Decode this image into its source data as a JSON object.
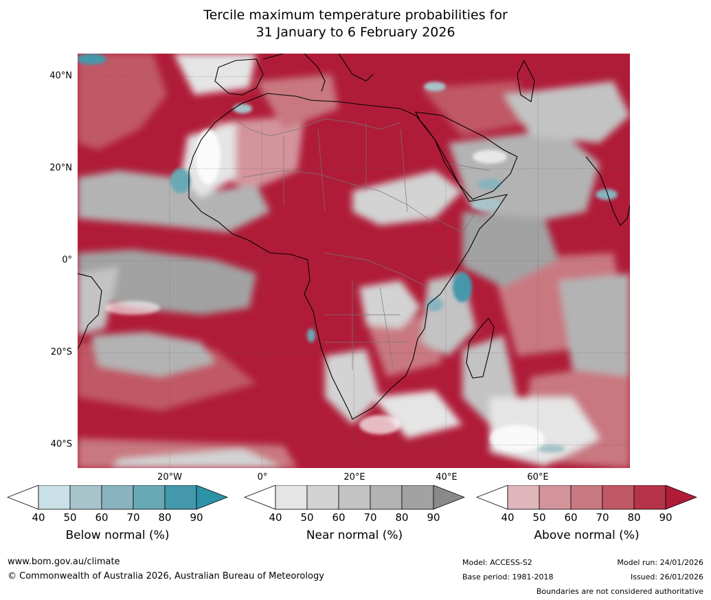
{
  "title": {
    "line1": "Tercile maximum temperature probabilities for",
    "line2": "31 January to 6 February 2026"
  },
  "map": {
    "lat_labels": [
      "40°N",
      "20°N",
      "0°",
      "20°S",
      "40°S"
    ],
    "lon_labels": [
      "20°W",
      "0°",
      "20°E",
      "40°E",
      "60°E"
    ],
    "extent": {
      "lon_min": -37,
      "lon_max": 83,
      "lat_min": -45,
      "lat_max": 45
    },
    "region": "Africa"
  },
  "colorbars": {
    "below": {
      "title": "Below normal (%)",
      "ticks": [
        "40",
        "50",
        "60",
        "70",
        "80",
        "90"
      ],
      "colors": [
        "#c9e1e6",
        "#a7c4cb",
        "#88b3bf",
        "#69a9b5",
        "#4498ab",
        "#2c93a8"
      ]
    },
    "near": {
      "title": "Near normal (%)",
      "ticks": [
        "40",
        "50",
        "60",
        "70",
        "80",
        "90"
      ],
      "colors": [
        "#e5e5e5",
        "#d3d3d3",
        "#c3c3c3",
        "#b3b3b3",
        "#a2a2a2",
        "#8a8a8a"
      ]
    },
    "above": {
      "title": "Above normal (%)",
      "ticks": [
        "40",
        "50",
        "60",
        "70",
        "80",
        "90"
      ],
      "colors": [
        "#dfb6bb",
        "#d3949c",
        "#c97880",
        "#c05866",
        "#b53448",
        "#b01c38"
      ]
    }
  },
  "footer": {
    "website": "www.bom.gov.au/climate",
    "copyright": "© Commonwealth of Australia 2026, Australian Bureau of Meteorology",
    "model": "Model: ACCESS-S2",
    "base_period": "Base period: 1981-2018",
    "model_run": "Model run: 24/01/2026",
    "issued": "Issued: 26/01/2026",
    "disclaimer": "Boundaries are not considered authoritative"
  }
}
